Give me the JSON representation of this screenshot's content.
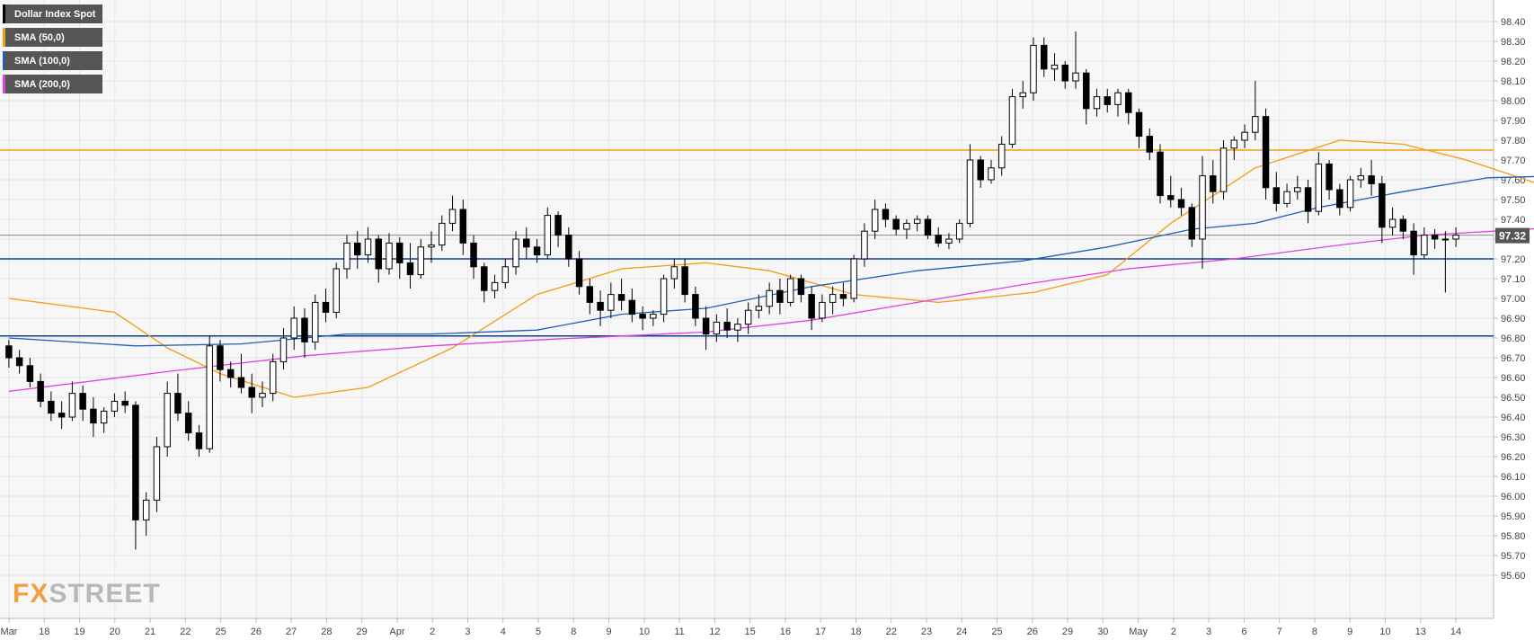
{
  "legend": [
    {
      "label": "Dollar Index Spot",
      "color": "#000000"
    },
    {
      "label": "SMA (50,0)",
      "color": "#f39c12"
    },
    {
      "label": "SMA (100,0)",
      "color": "#1f5fb8"
    },
    {
      "label": "SMA (200,0)",
      "color": "#e040e0"
    }
  ],
  "logo": {
    "fx": "FX",
    "street": "STREET"
  },
  "colors": {
    "background": "#f7f7f7",
    "grid": "#e6e6e6",
    "candle": "#000000",
    "sma50": "#f39c12",
    "sma100": "#1f5fb8",
    "sma200": "#e040e0",
    "resistance": "#f39c12",
    "support": "#0b3d91",
    "price_label_bg": "#555555"
  },
  "chart_data": {
    "type": "candlestick",
    "title": "Dollar Index Spot",
    "ylim": [
      95.6,
      98.45
    ],
    "y_ticks": [
      "98.40",
      "98.30",
      "98.20",
      "98.10",
      "98.00",
      "97.90",
      "97.80",
      "97.70",
      "97.60",
      "97.50",
      "97.40",
      "97.30",
      "97.20",
      "97.10",
      "97.00",
      "96.90",
      "96.80",
      "96.70",
      "96.60",
      "96.50",
      "96.40",
      "96.30",
      "96.20",
      "96.10",
      "96.00",
      "95.90",
      "95.80",
      "95.70",
      "95.60"
    ],
    "x_ticks": [
      "Mar",
      "18",
      "19",
      "20",
      "21",
      "22",
      "25",
      "26",
      "27",
      "28",
      "29",
      "Apr",
      "2",
      "3",
      "4",
      "5",
      "8",
      "9",
      "10",
      "11",
      "12",
      "15",
      "16",
      "17",
      "18",
      "22",
      "23",
      "24",
      "25",
      "26",
      "29",
      "30",
      "May",
      "2",
      "3",
      "6",
      "7",
      "8",
      "9",
      "10",
      "13",
      "14"
    ],
    "current_price": "97.32",
    "current_price_value": 97.32,
    "horizontal_levels": [
      {
        "name": "resistance",
        "value": 97.75
      },
      {
        "name": "support-upper",
        "value": 97.2
      },
      {
        "name": "support-lower",
        "value": 96.81
      }
    ],
    "candles": [
      [
        96.76,
        96.79,
        96.65,
        96.7
      ],
      [
        96.7,
        96.74,
        96.62,
        96.66
      ],
      [
        96.66,
        96.7,
        96.55,
        96.58
      ],
      [
        96.58,
        96.62,
        96.45,
        96.48
      ],
      [
        96.48,
        96.53,
        96.38,
        96.42
      ],
      [
        96.42,
        96.48,
        96.34,
        96.4
      ],
      [
        96.4,
        96.58,
        96.38,
        96.52
      ],
      [
        96.52,
        96.56,
        96.38,
        96.44
      ],
      [
        96.44,
        96.5,
        96.3,
        96.37
      ],
      [
        96.37,
        96.45,
        96.32,
        96.43
      ],
      [
        96.43,
        96.52,
        96.4,
        96.48
      ],
      [
        96.48,
        96.53,
        96.42,
        96.46
      ],
      [
        96.46,
        96.48,
        95.73,
        95.88
      ],
      [
        95.88,
        96.02,
        95.8,
        95.98
      ],
      [
        95.98,
        96.3,
        95.92,
        96.25
      ],
      [
        96.25,
        96.58,
        96.2,
        96.52
      ],
      [
        96.52,
        96.62,
        96.38,
        96.42
      ],
      [
        96.42,
        96.48,
        96.28,
        96.32
      ],
      [
        96.32,
        96.36,
        96.2,
        96.24
      ],
      [
        96.24,
        96.81,
        96.22,
        96.76
      ],
      [
        96.76,
        96.79,
        96.58,
        96.64
      ],
      [
        96.64,
        96.68,
        96.55,
        96.6
      ],
      [
        96.6,
        96.72,
        96.52,
        96.55
      ],
      [
        96.55,
        96.62,
        96.42,
        96.5
      ],
      [
        96.5,
        96.58,
        96.45,
        96.52
      ],
      [
        96.52,
        96.72,
        96.48,
        96.68
      ],
      [
        96.68,
        96.85,
        96.64,
        96.8
      ],
      [
        96.8,
        96.96,
        96.74,
        96.9
      ],
      [
        96.9,
        96.95,
        96.7,
        96.78
      ],
      [
        96.78,
        97.02,
        96.74,
        96.98
      ],
      [
        96.98,
        97.05,
        96.88,
        96.93
      ],
      [
        96.93,
        97.18,
        96.9,
        97.15
      ],
      [
        97.15,
        97.32,
        97.1,
        97.28
      ],
      [
        97.28,
        97.34,
        97.15,
        97.22
      ],
      [
        97.22,
        97.36,
        97.18,
        97.3
      ],
      [
        97.3,
        97.32,
        97.08,
        97.15
      ],
      [
        97.15,
        97.33,
        97.12,
        97.28
      ],
      [
        97.28,
        97.31,
        97.1,
        97.18
      ],
      [
        97.18,
        97.28,
        97.05,
        97.12
      ],
      [
        97.12,
        97.3,
        97.1,
        97.26
      ],
      [
        97.26,
        97.34,
        97.18,
        97.27
      ],
      [
        97.27,
        97.42,
        97.24,
        97.38
      ],
      [
        97.38,
        97.52,
        97.34,
        97.45
      ],
      [
        97.45,
        97.5,
        97.22,
        97.28
      ],
      [
        97.28,
        97.32,
        97.1,
        97.16
      ],
      [
        97.16,
        97.18,
        96.98,
        97.04
      ],
      [
        97.04,
        97.12,
        97.0,
        97.08
      ],
      [
        97.08,
        97.2,
        97.05,
        97.16
      ],
      [
        97.16,
        97.34,
        97.12,
        97.3
      ],
      [
        97.3,
        97.36,
        97.2,
        97.26
      ],
      [
        97.26,
        97.3,
        97.18,
        97.22
      ],
      [
        97.22,
        97.46,
        97.2,
        97.42
      ],
      [
        97.42,
        97.44,
        97.26,
        97.32
      ],
      [
        97.32,
        97.36,
        97.16,
        97.2
      ],
      [
        97.2,
        97.24,
        97.02,
        97.06
      ],
      [
        97.06,
        97.1,
        96.92,
        96.98
      ],
      [
        96.98,
        97.04,
        96.86,
        96.94
      ],
      [
        96.94,
        97.08,
        96.9,
        97.02
      ],
      [
        97.02,
        97.1,
        96.94,
        96.99
      ],
      [
        96.99,
        97.05,
        96.88,
        96.92
      ],
      [
        96.92,
        96.96,
        96.84,
        96.9
      ],
      [
        96.9,
        96.94,
        96.86,
        96.92
      ],
      [
        96.92,
        97.12,
        96.88,
        97.1
      ],
      [
        97.1,
        97.2,
        97.05,
        97.16
      ],
      [
        97.16,
        97.2,
        96.98,
        97.02
      ],
      [
        97.02,
        97.06,
        96.86,
        96.9
      ],
      [
        96.9,
        96.96,
        96.74,
        96.82
      ],
      [
        96.82,
        96.92,
        96.78,
        96.88
      ],
      [
        96.88,
        96.95,
        96.8,
        96.84
      ],
      [
        96.84,
        96.9,
        96.78,
        96.87
      ],
      [
        96.87,
        96.98,
        96.82,
        96.94
      ],
      [
        96.94,
        97.02,
        96.9,
        96.96
      ],
      [
        96.96,
        97.08,
        96.92,
        97.04
      ],
      [
        97.04,
        97.1,
        96.92,
        96.98
      ],
      [
        96.98,
        97.12,
        96.96,
        97.1
      ],
      [
        97.1,
        97.12,
        96.98,
        97.02
      ],
      [
        97.02,
        97.06,
        96.84,
        96.9
      ],
      [
        96.9,
        97.02,
        96.88,
        96.98
      ],
      [
        96.98,
        97.06,
        96.92,
        97.02
      ],
      [
        97.02,
        97.08,
        96.96,
        97.0
      ],
      [
        97.0,
        97.22,
        96.98,
        97.2
      ],
      [
        97.2,
        97.38,
        97.16,
        97.34
      ],
      [
        97.34,
        97.5,
        97.3,
        97.45
      ],
      [
        97.45,
        97.48,
        97.36,
        97.4
      ],
      [
        97.4,
        97.42,
        97.32,
        97.35
      ],
      [
        97.35,
        97.4,
        97.3,
        97.38
      ],
      [
        97.38,
        97.42,
        97.34,
        97.4
      ],
      [
        97.4,
        97.42,
        97.3,
        97.32
      ],
      [
        97.32,
        97.36,
        97.26,
        97.28
      ],
      [
        97.28,
        97.33,
        97.25,
        97.3
      ],
      [
        97.3,
        97.4,
        97.28,
        97.38
      ],
      [
        97.38,
        97.78,
        97.36,
        97.7
      ],
      [
        97.7,
        97.72,
        97.56,
        97.6
      ],
      [
        97.6,
        97.7,
        97.58,
        97.66
      ],
      [
        97.66,
        97.82,
        97.62,
        97.78
      ],
      [
        97.78,
        98.06,
        97.76,
        98.02
      ],
      [
        98.02,
        98.1,
        97.96,
        98.04
      ],
      [
        98.04,
        98.32,
        98.0,
        98.28
      ],
      [
        98.28,
        98.32,
        98.12,
        98.16
      ],
      [
        98.16,
        98.24,
        98.1,
        98.18
      ],
      [
        98.18,
        98.2,
        98.06,
        98.1
      ],
      [
        98.1,
        98.35,
        98.06,
        98.14
      ],
      [
        98.14,
        98.16,
        97.88,
        97.96
      ],
      [
        97.96,
        98.06,
        97.92,
        98.02
      ],
      [
        98.02,
        98.06,
        97.94,
        97.98
      ],
      [
        97.98,
        98.06,
        97.92,
        98.04
      ],
      [
        98.04,
        98.06,
        97.88,
        97.94
      ],
      [
        97.94,
        97.96,
        97.76,
        97.82
      ],
      [
        97.82,
        97.86,
        97.7,
        97.74
      ],
      [
        97.74,
        97.78,
        97.48,
        97.52
      ],
      [
        97.52,
        97.62,
        97.46,
        97.5
      ],
      [
        97.5,
        97.56,
        97.42,
        97.46
      ],
      [
        97.46,
        97.48,
        97.26,
        97.3
      ],
      [
        97.3,
        97.72,
        97.15,
        97.62
      ],
      [
        97.62,
        97.7,
        97.48,
        97.54
      ],
      [
        97.54,
        97.8,
        97.5,
        97.76
      ],
      [
        97.76,
        97.82,
        97.7,
        97.8
      ],
      [
        97.8,
        97.88,
        97.76,
        97.84
      ],
      [
        97.84,
        98.1,
        97.8,
        97.92
      ],
      [
        97.92,
        97.96,
        97.5,
        97.56
      ],
      [
        97.56,
        97.64,
        97.44,
        97.48
      ],
      [
        97.48,
        97.58,
        97.46,
        97.54
      ],
      [
        97.54,
        97.62,
        97.5,
        97.56
      ],
      [
        97.56,
        97.6,
        97.38,
        97.44
      ],
      [
        97.44,
        97.74,
        97.42,
        97.68
      ],
      [
        97.68,
        97.7,
        97.5,
        97.55
      ],
      [
        97.55,
        97.58,
        97.42,
        97.46
      ],
      [
        97.46,
        97.62,
        97.44,
        97.6
      ],
      [
        97.6,
        97.66,
        97.56,
        97.62
      ],
      [
        97.62,
        97.7,
        97.52,
        97.58
      ],
      [
        97.58,
        97.62,
        97.28,
        97.36
      ],
      [
        97.36,
        97.46,
        97.32,
        97.4
      ],
      [
        97.4,
        97.42,
        97.3,
        97.34
      ],
      [
        97.34,
        97.38,
        97.12,
        97.22
      ],
      [
        97.22,
        97.36,
        97.2,
        97.32
      ],
      [
        97.32,
        97.35,
        97.25,
        97.3
      ],
      [
        97.3,
        97.34,
        97.03,
        97.3
      ],
      [
        97.3,
        97.36,
        97.26,
        97.32
      ]
    ],
    "sma50": [
      [
        0,
        97.0
      ],
      [
        10,
        96.93
      ],
      [
        15,
        96.75
      ],
      [
        20,
        96.62
      ],
      [
        27,
        96.5
      ],
      [
        34,
        96.55
      ],
      [
        42,
        96.75
      ],
      [
        50,
        97.02
      ],
      [
        58,
        97.15
      ],
      [
        66,
        97.18
      ],
      [
        72,
        97.14
      ],
      [
        80,
        97.02
      ],
      [
        88,
        96.98
      ],
      [
        97,
        97.03
      ],
      [
        104,
        97.12
      ],
      [
        110,
        97.38
      ],
      [
        118,
        97.66
      ],
      [
        126,
        97.8
      ],
      [
        132,
        97.78
      ],
      [
        138,
        97.7
      ],
      [
        147,
        97.54
      ]
    ],
    "sma100": [
      [
        0,
        96.8
      ],
      [
        12,
        96.76
      ],
      [
        22,
        96.77
      ],
      [
        32,
        96.82
      ],
      [
        40,
        96.82
      ],
      [
        50,
        96.84
      ],
      [
        58,
        96.92
      ],
      [
        66,
        96.95
      ],
      [
        76,
        97.06
      ],
      [
        86,
        97.14
      ],
      [
        96,
        97.19
      ],
      [
        104,
        97.26
      ],
      [
        112,
        97.35
      ],
      [
        118,
        97.38
      ],
      [
        124,
        97.46
      ],
      [
        132,
        97.54
      ],
      [
        140,
        97.61
      ],
      [
        147,
        97.62
      ]
    ],
    "sma200": [
      [
        0,
        96.53
      ],
      [
        15,
        96.63
      ],
      [
        28,
        96.71
      ],
      [
        40,
        96.76
      ],
      [
        50,
        96.79
      ],
      [
        58,
        96.81
      ],
      [
        66,
        96.83
      ],
      [
        76,
        96.89
      ],
      [
        86,
        96.98
      ],
      [
        96,
        97.07
      ],
      [
        106,
        97.15
      ],
      [
        116,
        97.2
      ],
      [
        126,
        97.27
      ],
      [
        134,
        97.32
      ],
      [
        147,
        97.36
      ]
    ]
  }
}
